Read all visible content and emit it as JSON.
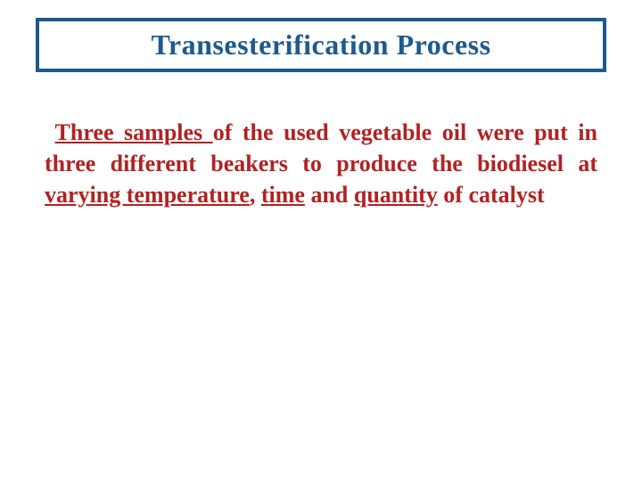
{
  "title": {
    "text": "Transesterification Process",
    "border_color": "#1e5a8e",
    "text_color": "#1e5a8e",
    "font_size": 32
  },
  "body": {
    "parts": [
      {
        "text": "Three samples ",
        "underline": true,
        "space_before": true
      },
      {
        "text": "of the used vegetable oil were put in three different beakers to produce the biodiesel at ",
        "underline": false
      },
      {
        "text": "varying temperature",
        "underline": true
      },
      {
        "text": ", ",
        "underline": false
      },
      {
        "text": "time",
        "underline": true
      },
      {
        "text": " and ",
        "underline": false
      },
      {
        "text": "quantity",
        "underline": true
      },
      {
        "text": " of catalyst",
        "underline": false
      }
    ],
    "text_color": "#b22222",
    "font_size": 26
  },
  "background_color": "#ffffff"
}
